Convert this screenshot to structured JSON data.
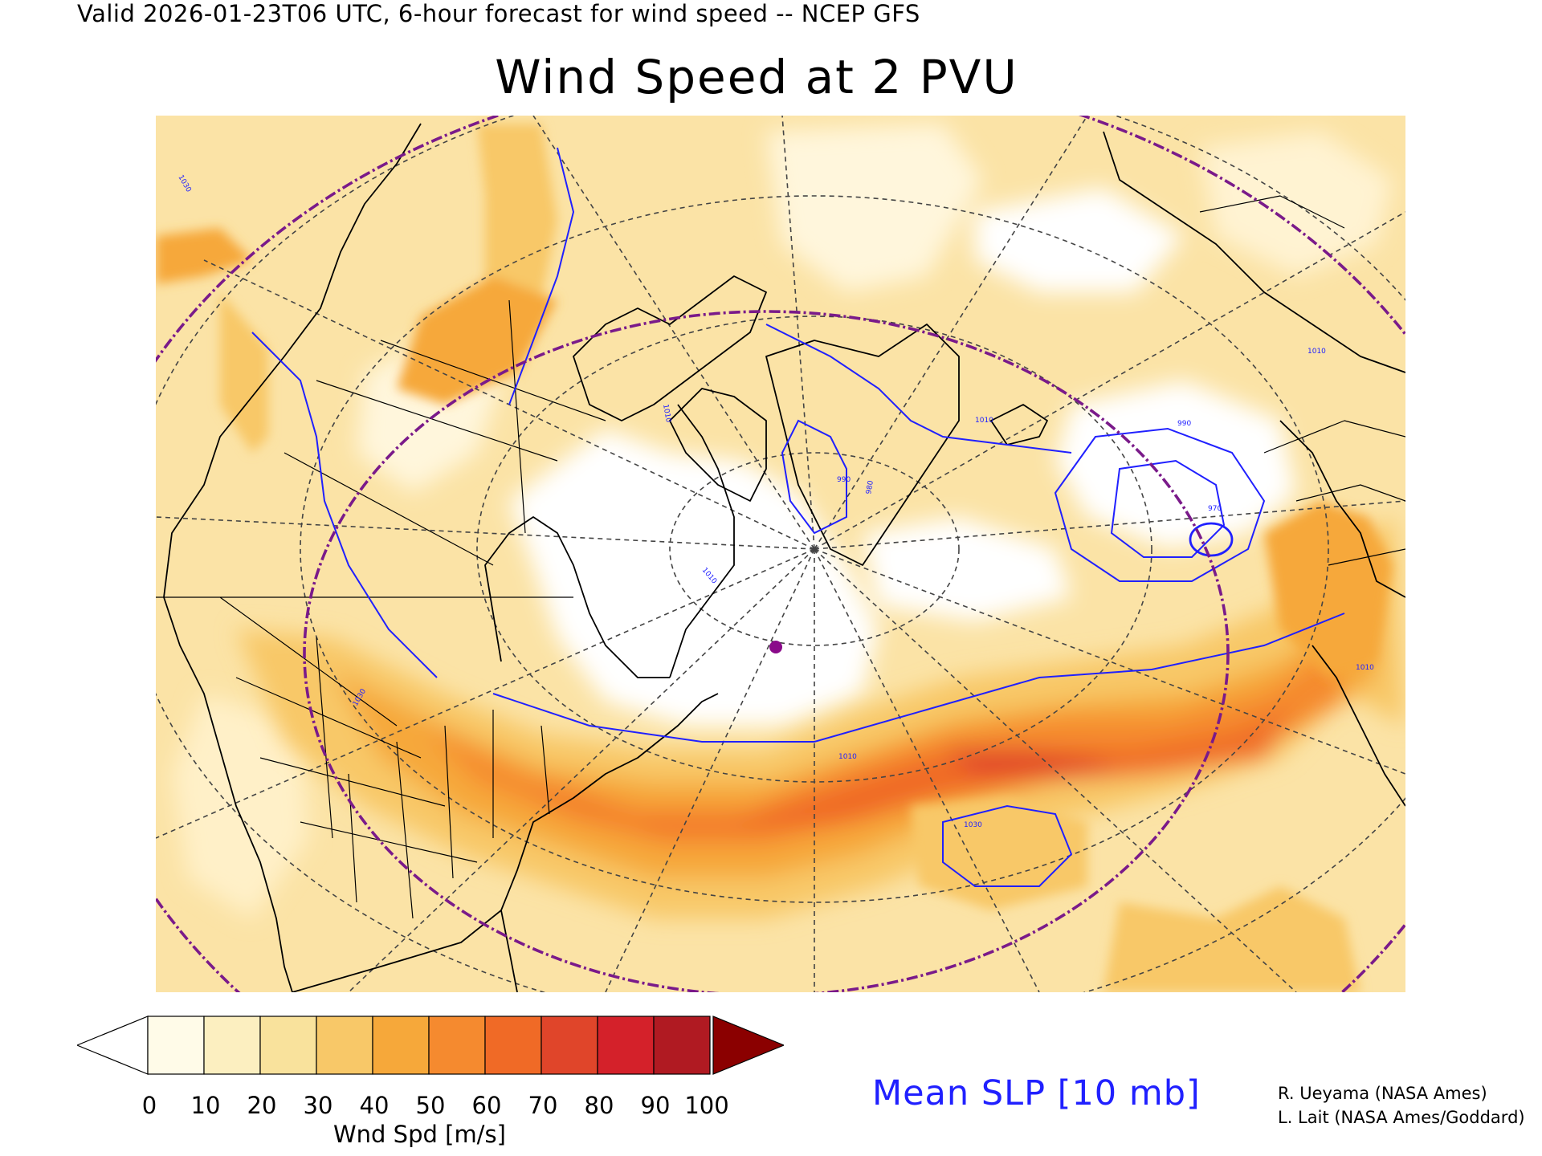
{
  "header": {
    "valid_line": "Valid 2026-01-23T06 UTC, 6-hour forecast for wind speed -- NCEP GFS",
    "title": "Wind Speed at 2 PVU"
  },
  "colorbar": {
    "ticks": [
      "0",
      "10",
      "20",
      "30",
      "40",
      "50",
      "60",
      "70",
      "80",
      "90",
      "100"
    ],
    "label": "Wnd Spd [m/s]",
    "colors": [
      "#ffffff",
      "#fffbe8",
      "#fcefc0",
      "#f9e29c",
      "#f8c868",
      "#f6a83a",
      "#f58a2f",
      "#f06a26",
      "#e0452a",
      "#d4212a",
      "#b01a22",
      "#8b0000"
    ]
  },
  "contour_legend": {
    "label": "Mean SLP [10 mb]",
    "color": "#2020ff"
  },
  "contour_labels": [
    "1030",
    "1030",
    "1030",
    "1010",
    "1010",
    "1010",
    "1010",
    "1010",
    "990",
    "990",
    "970",
    "980",
    "1010"
  ],
  "credits": [
    "R. Ueyama (NASA Ames)",
    "L. Lait (NASA Ames/Goddard)"
  ],
  "map": {
    "overlay_colors": {
      "contour": "#2020ff",
      "boundary": "#000000",
      "circle": "#7a1a8a",
      "marker": "#8a0a8a",
      "grid": "#444444"
    }
  }
}
